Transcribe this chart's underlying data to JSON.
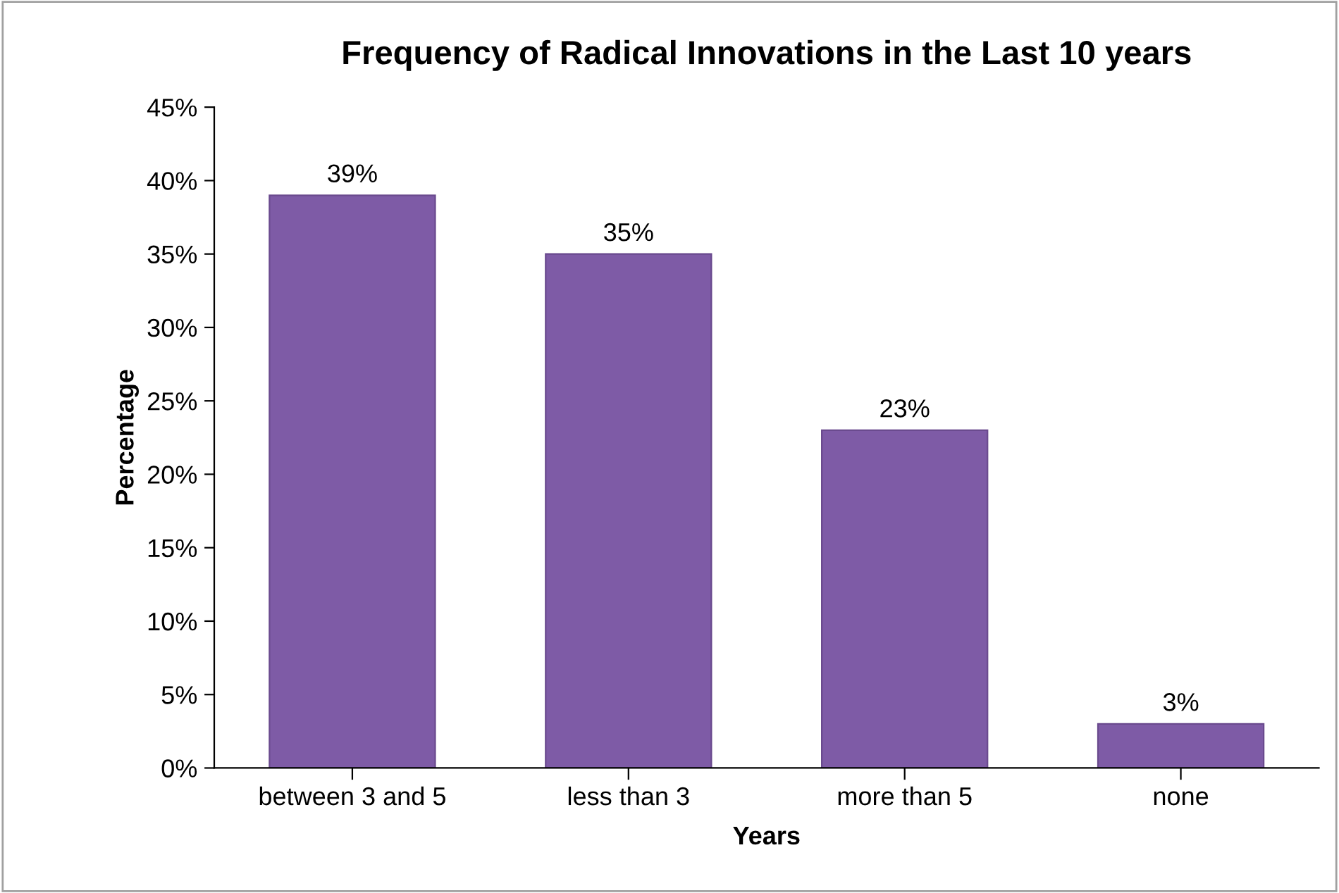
{
  "chart_data": {
    "type": "bar",
    "title": "Frequency of Radical Innovations in the Last 10 years",
    "xlabel": "Years",
    "ylabel": "Percentage",
    "categories": [
      "between 3 and 5",
      "less than 3",
      "more than 5",
      "none"
    ],
    "values": [
      39,
      35,
      23,
      3
    ],
    "color": "#7e5ba6",
    "value_labels": [
      "39%",
      "35%",
      "23%",
      "3%"
    ],
    "ylim": [
      0,
      45
    ],
    "yticks": [
      {
        "value": 0,
        "label": "0%"
      },
      {
        "value": 5,
        "label": "5%"
      },
      {
        "value": 10,
        "label": "10%"
      },
      {
        "value": 15,
        "label": "15%"
      },
      {
        "value": 20,
        "label": "20%"
      },
      {
        "value": 25,
        "label": "25%"
      },
      {
        "value": 30,
        "label": "30%"
      },
      {
        "value": 35,
        "label": "35%"
      },
      {
        "value": 40,
        "label": "40%"
      },
      {
        "value": 45,
        "label": "45%"
      }
    ],
    "grid": false,
    "legend": false
  }
}
